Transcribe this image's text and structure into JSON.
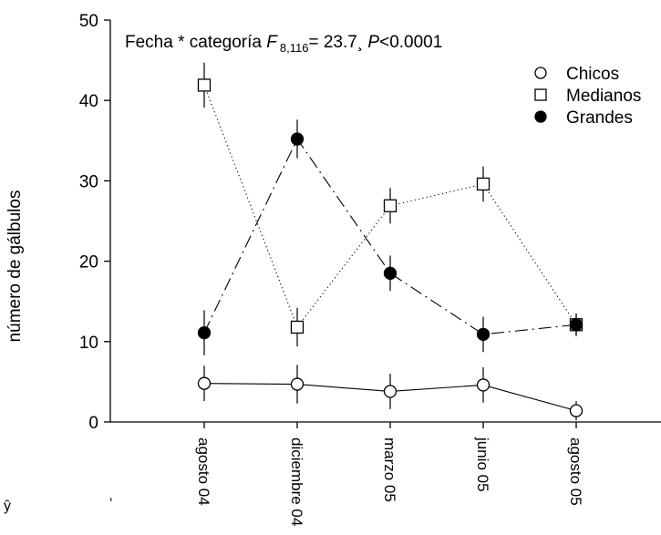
{
  "chart_data": {
    "type": "line",
    "title": "",
    "annotation": {
      "prefix": "Fecha * categoría ",
      "f_symbol": "F",
      "f_subscript": "8,116",
      "f_value": "= 23.7¸ ",
      "p_symbol": "P",
      "p_value": "<0.0001"
    },
    "xlabel": "",
    "ylabel": "número de gálbulos",
    "ylim": [
      0,
      50
    ],
    "yticks": [
      0,
      10,
      20,
      30,
      40,
      50
    ],
    "categories": [
      "agosto 04",
      "diciembre 04",
      "marzo 05",
      "junio 05",
      "agosto 05"
    ],
    "grid": false,
    "legend_position": "top-right",
    "series": [
      {
        "name": "Chicos",
        "marker": "open-circle",
        "line_style": "solid",
        "values": [
          4.8,
          4.7,
          3.8,
          4.6,
          1.4
        ],
        "errors": [
          2.2,
          2.4,
          2.2,
          2.2,
          1.2
        ]
      },
      {
        "name": "Medianos",
        "marker": "open-square",
        "line_style": "dotted",
        "values": [
          41.9,
          11.8,
          26.9,
          29.6,
          12.1
        ],
        "errors": [
          2.8,
          2.4,
          2.2,
          2.2,
          1.4
        ]
      },
      {
        "name": "Grandes",
        "marker": "filled-circle",
        "line_style": "dash-dot",
        "values": [
          11.1,
          35.2,
          18.5,
          10.9,
          12.1
        ],
        "errors": [
          2.8,
          2.4,
          2.2,
          2.2,
          1.4
        ]
      }
    ],
    "stray_marks": [
      "ŷ",
      "‘"
    ],
    "colors": {
      "ink": "#000000",
      "background": "#ffffff"
    }
  }
}
